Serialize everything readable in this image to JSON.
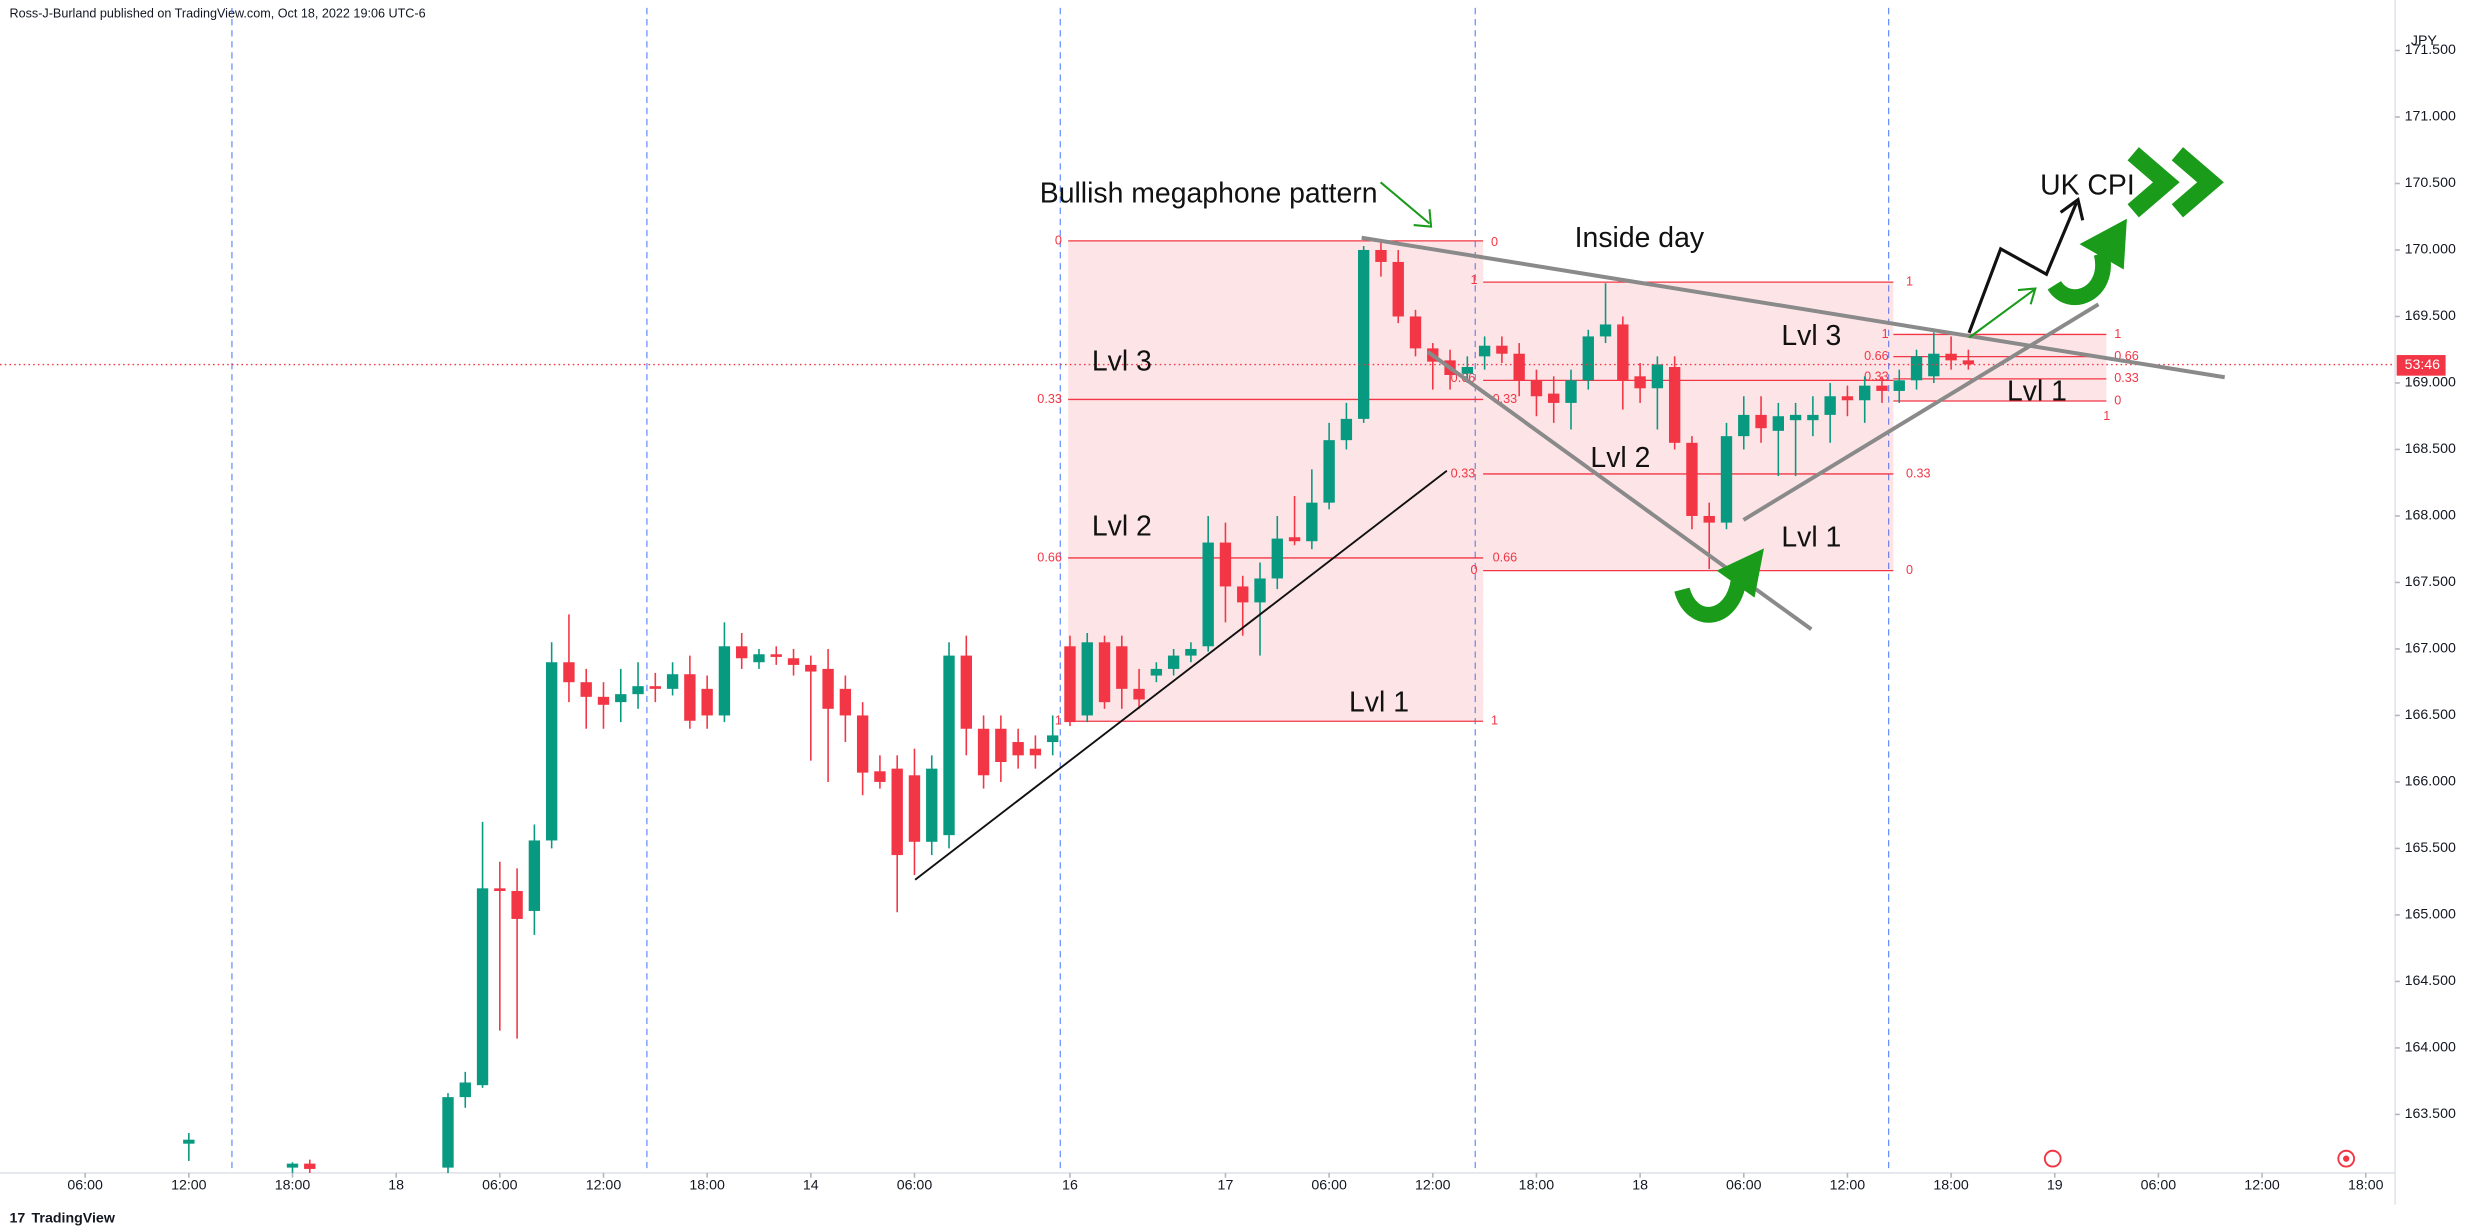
{
  "header": {
    "byline": "Ross-J-Burland published on TradingView.com, Oct 18, 2022 19:06 UTC-6"
  },
  "footer": {
    "brand": "TradingView"
  },
  "chart_data": {
    "type": "candlestick",
    "currency": "JPY",
    "countdown": "53:46",
    "up_color": "#089981",
    "down_color": "#f23645",
    "grid": false,
    "annotations": {
      "pattern": "Bullish megaphone pattern",
      "inside": "Inside day",
      "event": "UK CPI",
      "lvl3": "Lvl 3",
      "lvl2": "Lvl 2",
      "lvl1": "Lvl 1"
    },
    "fib_levels": [
      0,
      0.33,
      0.66,
      1
    ],
    "x": [
      6,
      12,
      13,
      21,
      22,
      23,
      24,
      25,
      26,
      27,
      28,
      29,
      30,
      31,
      32,
      33,
      34,
      35,
      36,
      37,
      38,
      39,
      40,
      41,
      42,
      43,
      44,
      45,
      46,
      47,
      48,
      49,
      50,
      51,
      52,
      53,
      54,
      55,
      56,
      57,
      58,
      59,
      60,
      61,
      62,
      63,
      64,
      65,
      66,
      67,
      68,
      69,
      70,
      71,
      72,
      73,
      74,
      75,
      76,
      77,
      78,
      79,
      80,
      81,
      82,
      83,
      84,
      85,
      86,
      87,
      88,
      89,
      90,
      91,
      92,
      93,
      94,
      95,
      96,
      97,
      98,
      99,
      100,
      101,
      102,
      103,
      104,
      105,
      106,
      107,
      108,
      109
    ],
    "open": [
      163.28,
      163.1,
      163.13,
      163.1,
      163.63,
      163.72,
      165.2,
      165.18,
      165.03,
      165.56,
      166.9,
      166.75,
      166.64,
      166.6,
      166.66,
      166.72,
      166.7,
      166.81,
      166.7,
      166.5,
      167.02,
      166.9,
      166.96,
      166.93,
      166.88,
      166.85,
      166.7,
      166.5,
      166.08,
      166.1,
      166.05,
      165.55,
      165.6,
      166.95,
      166.4,
      166.4,
      166.3,
      166.25,
      166.3,
      167.02,
      166.5,
      167.05,
      167.02,
      166.7,
      166.8,
      166.85,
      166.95,
      167.02,
      167.8,
      167.47,
      167.35,
      167.53,
      167.84,
      167.81,
      168.1,
      168.57,
      168.73,
      170.0,
      169.91,
      169.5,
      169.26,
      169.17,
      169.07,
      169.2,
      169.28,
      169.22,
      169.02,
      168.92,
      168.85,
      169.02,
      169.35,
      169.44,
      169.05,
      168.96,
      169.12,
      168.55,
      168.0,
      167.95,
      168.6,
      168.76,
      168.64,
      168.72,
      168.72,
      168.76,
      168.9,
      168.87,
      168.98,
      168.94,
      169.02,
      169.05,
      169.22,
      169.17
    ],
    "high": [
      163.36,
      163.14,
      163.16,
      163.66,
      163.82,
      165.7,
      165.4,
      165.35,
      165.68,
      167.05,
      167.26,
      166.85,
      166.75,
      166.85,
      166.9,
      166.82,
      166.9,
      166.95,
      166.8,
      167.2,
      167.12,
      167.0,
      167.02,
      167.0,
      166.95,
      167.0,
      166.8,
      166.6,
      166.2,
      166.2,
      166.25,
      166.2,
      167.05,
      167.1,
      166.5,
      166.5,
      166.4,
      166.35,
      166.5,
      167.1,
      167.12,
      167.1,
      167.1,
      166.85,
      166.9,
      167.0,
      167.05,
      168.0,
      167.95,
      167.55,
      167.65,
      168.0,
      168.15,
      168.35,
      168.7,
      168.85,
      170.03,
      170.07,
      170.0,
      169.55,
      169.3,
      169.25,
      169.2,
      169.35,
      169.35,
      169.3,
      169.1,
      169.05,
      169.1,
      169.4,
      169.75,
      169.5,
      169.15,
      169.2,
      169.2,
      168.6,
      168.1,
      168.7,
      168.9,
      168.9,
      168.85,
      168.85,
      168.9,
      169.0,
      168.98,
      169.05,
      169.05,
      169.1,
      169.25,
      169.38,
      169.35,
      169.25
    ],
    "low": [
      163.15,
      163.06,
      163.06,
      163.05,
      163.55,
      163.7,
      164.13,
      164.07,
      164.85,
      165.5,
      166.6,
      166.4,
      166.4,
      166.45,
      166.55,
      166.6,
      166.65,
      166.4,
      166.4,
      166.45,
      166.85,
      166.85,
      166.88,
      166.8,
      166.16,
      166.0,
      166.3,
      165.9,
      165.95,
      165.02,
      165.3,
      165.45,
      165.5,
      166.2,
      165.95,
      166.0,
      166.1,
      166.1,
      166.2,
      166.42,
      166.45,
      166.55,
      166.55,
      166.55,
      166.75,
      166.8,
      166.9,
      166.98,
      167.2,
      167.1,
      166.95,
      167.45,
      167.78,
      167.75,
      168.05,
      168.5,
      168.7,
      169.8,
      169.45,
      169.2,
      168.95,
      168.95,
      169.0,
      169.1,
      169.15,
      168.9,
      168.75,
      168.7,
      168.65,
      168.95,
      169.3,
      168.8,
      168.85,
      168.65,
      168.5,
      167.9,
      167.6,
      167.9,
      168.5,
      168.55,
      168.3,
      168.3,
      168.6,
      168.55,
      168.75,
      168.7,
      168.85,
      168.85,
      168.95,
      169.0,
      169.1,
      169.1
    ],
    "close": [
      163.31,
      163.13,
      163.09,
      163.63,
      163.74,
      165.2,
      165.18,
      164.97,
      165.56,
      166.9,
      166.75,
      166.64,
      166.58,
      166.66,
      166.72,
      166.7,
      166.81,
      166.46,
      166.5,
      167.02,
      166.93,
      166.96,
      166.94,
      166.88,
      166.83,
      166.55,
      166.5,
      166.07,
      166.0,
      165.45,
      165.55,
      166.1,
      166.95,
      166.4,
      166.05,
      166.15,
      166.2,
      166.2,
      166.35,
      166.45,
      167.05,
      166.6,
      166.7,
      166.62,
      166.85,
      166.95,
      167.0,
      167.8,
      167.47,
      167.35,
      167.53,
      167.83,
      167.81,
      168.1,
      168.57,
      168.73,
      170.0,
      169.91,
      169.5,
      169.26,
      169.16,
      169.06,
      169.12,
      169.28,
      169.22,
      169.02,
      168.9,
      168.85,
      169.02,
      169.35,
      169.44,
      169.02,
      168.96,
      169.14,
      168.55,
      168.0,
      167.95,
      168.6,
      168.76,
      168.66,
      168.75,
      168.76,
      168.76,
      168.9,
      168.87,
      168.98,
      168.94,
      169.02,
      169.2,
      169.22,
      169.17,
      169.14
    ],
    "xlim": [
      -4.93,
      133.7
    ],
    "xticks": [
      {
        "value": 0,
        "label": "06:00"
      },
      {
        "value": 6,
        "label": "12:00"
      },
      {
        "value": 12,
        "label": "18:00"
      },
      18,
      {
        "value": 24,
        "label": "06:00"
      },
      {
        "value": 30,
        "label": "12:00"
      },
      {
        "value": 36,
        "label": "18:00"
      },
      14,
      {
        "value": 48,
        "label": "06:00"
      },
      16,
      17,
      {
        "value": 72,
        "label": "06:00"
      },
      {
        "value": 78,
        "label": "12:00"
      },
      {
        "value": 84,
        "label": "18:00"
      },
      18,
      {
        "value": 96,
        "label": "06:00"
      },
      {
        "value": 102,
        "label": "12:00"
      },
      {
        "value": 108,
        "label": "18:00"
      },
      19,
      {
        "value": 120,
        "label": "06:00"
      },
      {
        "value": 126,
        "label": "12:00"
      },
      {
        "value": 132,
        "label": "18:00"
      }
    ],
    "xtick_positions": [
      0,
      6,
      12,
      18,
      24,
      30,
      36,
      42,
      48,
      57,
      66,
      72,
      78,
      84,
      90,
      96,
      102,
      108,
      114,
      120,
      126,
      132
    ],
    "ylim": [
      163.06,
      171.82
    ],
    "yticks": [
      {
        "value": 163.5,
        "label": "163.500"
      },
      {
        "value": 164,
        "label": "164.000"
      },
      {
        "value": 164.5,
        "label": "164.500"
      },
      {
        "value": 165,
        "label": "165.000"
      },
      {
        "value": 165.5,
        "label": "165.500"
      },
      {
        "value": 166,
        "label": "166.000"
      },
      {
        "value": 166.5,
        "label": "166.500"
      },
      {
        "value": 167,
        "label": "167.000"
      },
      {
        "value": 167.5,
        "label": "167.500"
      },
      {
        "value": 168,
        "label": "168.000"
      },
      {
        "value": 168.5,
        "label": "168.500"
      },
      {
        "value": 169,
        "label": "169.000"
      },
      {
        "value": 169.5,
        "label": "169.500"
      },
      {
        "value": 170,
        "label": "170.000"
      },
      {
        "value": 170.5,
        "label": "170.500"
      },
      {
        "value": 171,
        "label": "171.000"
      },
      {
        "value": 171.5,
        "label": "171.500"
      }
    ]
  }
}
